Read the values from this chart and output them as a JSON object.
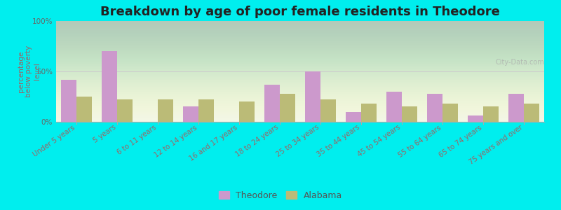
{
  "title": "Breakdown by age of poor female residents in Theodore",
  "ylabel": "percentage\nbelow poverty\nlevel",
  "categories": [
    "Under 5 years",
    "5 years",
    "6 to 11 years",
    "12 to 14 years",
    "16 and 17 years",
    "18 to 24 years",
    "25 to 34 years",
    "35 to 44 years",
    "45 to 54 years",
    "55 to 64 years",
    "65 to 74 years",
    "75 years and over"
  ],
  "theodore": [
    42,
    70,
    0,
    15,
    0,
    37,
    50,
    10,
    30,
    28,
    6,
    28
  ],
  "alabama": [
    25,
    22,
    22,
    22,
    20,
    28,
    22,
    18,
    15,
    18,
    15,
    18
  ],
  "theodore_color": "#cc99cc",
  "alabama_color": "#bbbb77",
  "background_outer": "#00eeee",
  "ylim": [
    0,
    100
  ],
  "yticks": [
    0,
    50,
    100
  ],
  "ytick_labels": [
    "0%",
    "50%",
    "100%"
  ],
  "bar_width": 0.38,
  "legend_labels": [
    "Theodore",
    "Alabama"
  ],
  "title_fontsize": 13,
  "axis_label_fontsize": 7.5,
  "tick_color": "#996666",
  "ylabel_color": "#996666"
}
